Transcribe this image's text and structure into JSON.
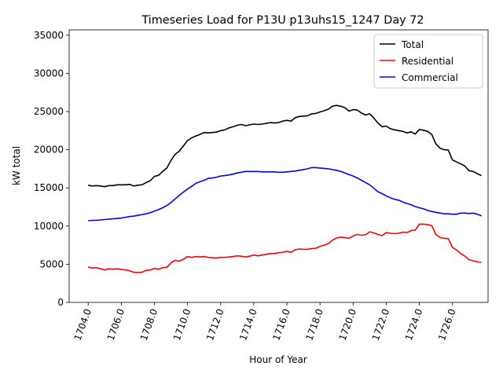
{
  "chart_data": {
    "type": "line",
    "title": "Timeseries Load for P13U p13uhs15_1247  Day 72",
    "xlabel": "Hour of Year",
    "ylabel": "kW total",
    "xlim": [
      1702.85,
      1728.15
    ],
    "ylim": [
      0,
      35700
    ],
    "xticks": [
      1704,
      1706,
      1708,
      1710,
      1712,
      1714,
      1716,
      1718,
      1720,
      1722,
      1724,
      1726
    ],
    "xtick_labels": [
      "1704.0",
      "1706.0",
      "1708.0",
      "1710.0",
      "1712.0",
      "1714.0",
      "1716.0",
      "1718.0",
      "1720.0",
      "1722.0",
      "1724.0",
      "1726.0"
    ],
    "yticks": [
      0,
      5000,
      10000,
      15000,
      20000,
      25000,
      30000,
      35000
    ],
    "ytick_labels": [
      "0",
      "5000",
      "10000",
      "15000",
      "20000",
      "25000",
      "30000",
      "35000"
    ],
    "legend_position": "top-right",
    "x": [
      1704.0,
      1704.25,
      1704.5,
      1704.75,
      1705.0,
      1705.25,
      1705.5,
      1705.75,
      1706.0,
      1706.25,
      1706.5,
      1706.75,
      1707.0,
      1707.25,
      1707.5,
      1707.75,
      1708.0,
      1708.25,
      1708.5,
      1708.75,
      1709.0,
      1709.25,
      1709.5,
      1709.75,
      1710.0,
      1710.25,
      1710.5,
      1710.75,
      1711.0,
      1711.25,
      1711.5,
      1711.75,
      1712.0,
      1712.25,
      1712.5,
      1712.75,
      1713.0,
      1713.25,
      1713.5,
      1713.75,
      1714.0,
      1714.25,
      1714.5,
      1714.75,
      1715.0,
      1715.25,
      1715.5,
      1715.75,
      1716.0,
      1716.25,
      1716.5,
      1716.75,
      1717.0,
      1717.25,
      1717.5,
      1717.75,
      1718.0,
      1718.25,
      1718.5,
      1718.75,
      1719.0,
      1719.25,
      1719.5,
      1719.75,
      1720.0,
      1720.25,
      1720.5,
      1720.75,
      1721.0,
      1721.25,
      1721.5,
      1721.75,
      1722.0,
      1722.25,
      1722.5,
      1722.75,
      1723.0,
      1723.25,
      1723.5,
      1723.75,
      1724.0,
      1724.25,
      1724.5,
      1724.75,
      1725.0,
      1725.25,
      1725.5,
      1725.75,
      1726.0,
      1726.25,
      1726.5,
      1726.75,
      1727.0,
      1727.25,
      1727.5,
      1727.75
    ],
    "series": [
      {
        "name": "Total",
        "color": "#000000",
        "values": [
          15350,
          15250,
          15300,
          15250,
          15150,
          15300,
          15300,
          15400,
          15400,
          15400,
          15450,
          15250,
          15350,
          15400,
          15700,
          15950,
          16500,
          16650,
          17150,
          17600,
          18600,
          19400,
          19800,
          20500,
          21200,
          21550,
          21800,
          22000,
          22250,
          22200,
          22250,
          22300,
          22500,
          22600,
          22850,
          23000,
          23200,
          23300,
          23150,
          23250,
          23350,
          23300,
          23350,
          23450,
          23550,
          23500,
          23550,
          23750,
          23850,
          23750,
          24200,
          24350,
          24400,
          24450,
          24700,
          24750,
          24950,
          25100,
          25300,
          25700,
          25800,
          25700,
          25500,
          25050,
          25250,
          25200,
          24800,
          24550,
          24700,
          24150,
          23500,
          23000,
          23100,
          22750,
          22600,
          22500,
          22400,
          22200,
          22350,
          22050,
          22650,
          22550,
          22400,
          22000,
          20750,
          20200,
          20000,
          19950,
          18650,
          18400,
          18150,
          17850,
          17250,
          17150,
          16850,
          16600
        ]
      },
      {
        "name": "Residential",
        "color": "#ff0000",
        "values": [
          4650,
          4500,
          4550,
          4400,
          4250,
          4400,
          4350,
          4400,
          4300,
          4250,
          4150,
          3950,
          3900,
          3950,
          4200,
          4250,
          4450,
          4350,
          4550,
          4600,
          5200,
          5500,
          5400,
          5650,
          6000,
          5900,
          6000,
          5950,
          6000,
          5900,
          5850,
          5800,
          5900,
          5900,
          5950,
          6000,
          6100,
          6050,
          5950,
          6050,
          6200,
          6100,
          6200,
          6300,
          6400,
          6400,
          6500,
          6550,
          6700,
          6550,
          6900,
          7000,
          6950,
          6950,
          7050,
          7100,
          7350,
          7500,
          7700,
          8150,
          8450,
          8550,
          8500,
          8400,
          8700,
          8900,
          8800,
          8850,
          9250,
          9100,
          8900,
          8750,
          9150,
          9050,
          9000,
          9050,
          9200,
          9150,
          9400,
          9450,
          10250,
          10250,
          10200,
          10050,
          8900,
          8500,
          8400,
          8350,
          7200,
          6850,
          6400,
          6050,
          5600,
          5450,
          5300,
          5250
        ]
      },
      {
        "name": "Commercial",
        "color": "#0000ff",
        "values": [
          10700,
          10750,
          10750,
          10800,
          10850,
          10900,
          10950,
          11000,
          11050,
          11150,
          11250,
          11300,
          11400,
          11500,
          11600,
          11750,
          11950,
          12150,
          12400,
          12700,
          13100,
          13550,
          14000,
          14450,
          14850,
          15200,
          15600,
          15800,
          16000,
          16250,
          16300,
          16400,
          16550,
          16600,
          16700,
          16800,
          16950,
          17050,
          17150,
          17150,
          17150,
          17150,
          17100,
          17100,
          17100,
          17100,
          17050,
          17050,
          17100,
          17150,
          17200,
          17300,
          17400,
          17500,
          17650,
          17650,
          17600,
          17550,
          17500,
          17400,
          17300,
          17150,
          16950,
          16750,
          16550,
          16300,
          16000,
          15700,
          15400,
          14950,
          14500,
          14250,
          13950,
          13700,
          13500,
          13400,
          13150,
          12950,
          12800,
          12550,
          12400,
          12250,
          12050,
          11900,
          11800,
          11700,
          11600,
          11600,
          11550,
          11550,
          11700,
          11700,
          11650,
          11700,
          11550,
          11350
        ]
      }
    ]
  }
}
